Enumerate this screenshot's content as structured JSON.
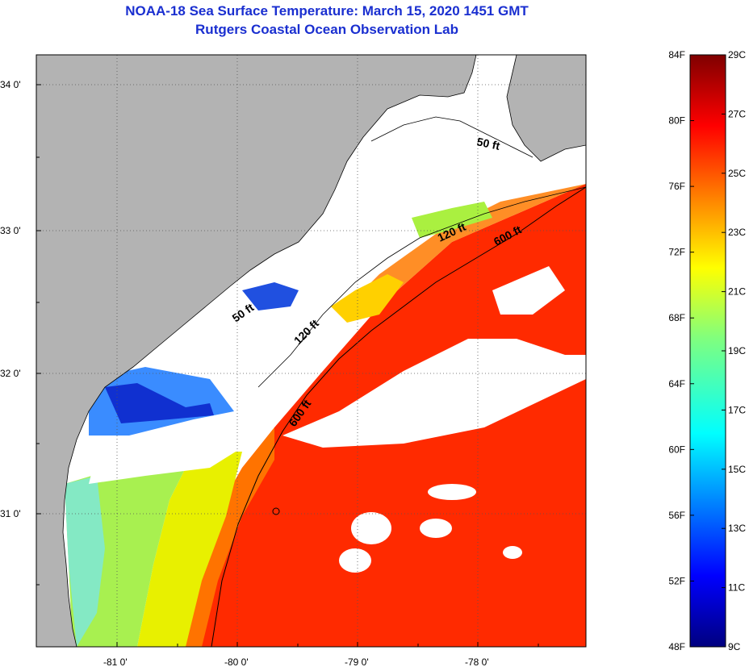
{
  "title": {
    "line1": "NOAA-18 Sea Surface Temperature:  March 15, 2020 1451 GMT",
    "line2": "Rutgers Coastal Ocean Observation Lab"
  },
  "colors": {
    "title": "#1a2fd0",
    "land": "#b3b3b3",
    "cloud": "#ffffff"
  },
  "map": {
    "lon_ticks": [
      "-81 0'",
      "-80 0'",
      "-79 0'",
      "-78 0'"
    ],
    "lat_ticks": [
      "34 0'",
      "33 0'",
      "32 0'",
      "31 0'"
    ],
    "contours": [
      "50 ft",
      "120 ft",
      "600 ft",
      "50 ft",
      "120 ft",
      "600 ft"
    ]
  },
  "colorbar": {
    "fahrenheit": [
      "84F",
      "80F",
      "76F",
      "72F",
      "68F",
      "64F",
      "60F",
      "56F",
      "52F",
      "48F"
    ],
    "celsius": [
      "29C",
      "27C",
      "25C",
      "23C",
      "21C",
      "19C",
      "17C",
      "15C",
      "13C",
      "11C",
      "9C"
    ]
  }
}
